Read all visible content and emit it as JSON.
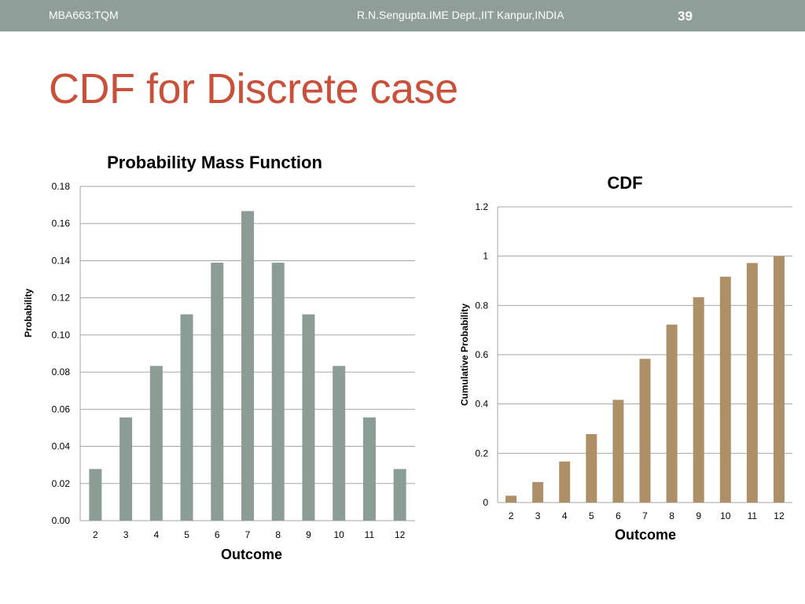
{
  "header": {
    "course": "MBA663:TQM",
    "author": "R.N.Sengupta.IME Dept.,IIT Kanpur,INDIA",
    "slide_number": "39"
  },
  "slide": {
    "title": "CDF for Discrete case"
  },
  "colors": {
    "header_bg": "#8f9e99",
    "title": "#c9503b",
    "pmf_bar": "#8c9d96",
    "cdf_bar": "#ad9068",
    "grid": "#a6a6a6"
  },
  "chart_data": [
    {
      "type": "bar",
      "title": "Probability Mass Function",
      "xlabel": "Outcome",
      "ylabel": "Probability",
      "categories": [
        "2",
        "3",
        "4",
        "5",
        "6",
        "7",
        "8",
        "9",
        "10",
        "11",
        "12"
      ],
      "values": [
        0.0278,
        0.0556,
        0.0833,
        0.1111,
        0.1389,
        0.1667,
        0.1389,
        0.1111,
        0.0833,
        0.0556,
        0.0278
      ],
      "ylim": [
        0,
        0.18
      ],
      "yticks": [
        "0.00",
        "0.02",
        "0.04",
        "0.06",
        "0.08",
        "0.10",
        "0.12",
        "0.14",
        "0.16",
        "0.18"
      ],
      "grid": true,
      "legend": "none"
    },
    {
      "type": "bar",
      "title": "CDF",
      "xlabel": "Outcome",
      "ylabel": "Cumulative Probability",
      "categories": [
        "2",
        "3",
        "4",
        "5",
        "6",
        "7",
        "8",
        "9",
        "10",
        "11",
        "12"
      ],
      "values": [
        0.0278,
        0.0833,
        0.1667,
        0.2778,
        0.4167,
        0.5833,
        0.7222,
        0.8333,
        0.9167,
        0.9722,
        1.0
      ],
      "ylim": [
        0,
        1.2
      ],
      "yticks": [
        "0",
        "0.2",
        "0.4",
        "0.6",
        "0.8",
        "1",
        "1.2"
      ],
      "grid": true,
      "legend": "none"
    }
  ]
}
